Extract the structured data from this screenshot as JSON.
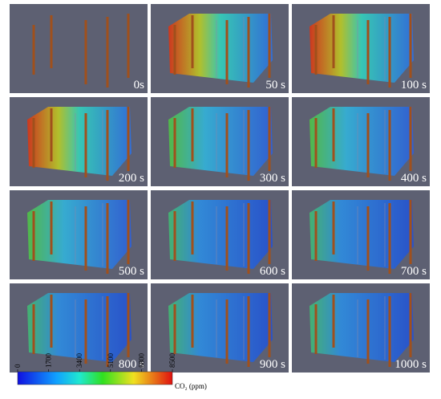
{
  "panels": [
    {
      "label": "0s"
    },
    {
      "label": "50 s"
    },
    {
      "label": "100 s"
    },
    {
      "label": "200 s"
    },
    {
      "label": "300 s"
    },
    {
      "label": "400 s"
    },
    {
      "label": "500 s"
    },
    {
      "label": "600 s"
    },
    {
      "label": "700 s"
    },
    {
      "label": "800 s"
    },
    {
      "label": "900 s"
    },
    {
      "label": "1000 s"
    }
  ],
  "colorbar": {
    "label": "CO₂ (ppm)",
    "range": [
      0,
      8500
    ],
    "ticks": [
      0,
      1700,
      3400,
      5100,
      6800,
      8500
    ]
  }
}
